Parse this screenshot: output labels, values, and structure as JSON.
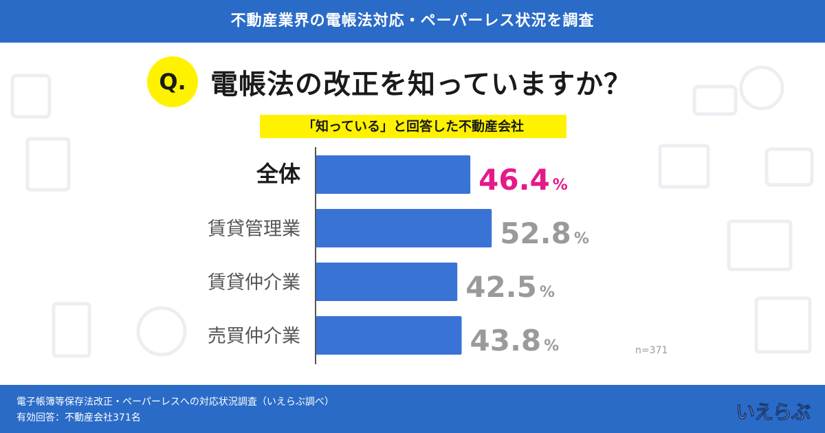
{
  "header": {
    "title": "不動産業界の電帳法対応・ペーパーレス状況を調査"
  },
  "question": {
    "mark": "Q.",
    "text": "電帳法の改正を知っていますか？"
  },
  "subtitle": "「知っている」と回答した不動産会社",
  "sample_note": "n=371",
  "footer": {
    "line1": "電子帳簿等保存法改正・ペーパーレスへの対応状況調査（いえらぶ調べ）",
    "line2": "有効回答：不動産会社371名"
  },
  "logo": {
    "text": "いえらぶ"
  },
  "colors": {
    "brand": "#2a6bc7",
    "bar": "#3a73d6",
    "highlight": "#e6198a",
    "value": "#9a9a9a",
    "accent": "#fff200"
  },
  "chart_data": {
    "type": "bar",
    "orientation": "horizontal",
    "categories": [
      "全体",
      "賃貸管理業",
      "賃貸仲介業",
      "売買仲介業"
    ],
    "values": [
      46.4,
      52.8,
      42.5,
      43.8
    ],
    "value_labels": [
      "46.4",
      "52.8",
      "42.5",
      "43.8"
    ],
    "unit": "%",
    "highlight_index": 0,
    "xlim": [
      0,
      100
    ]
  }
}
